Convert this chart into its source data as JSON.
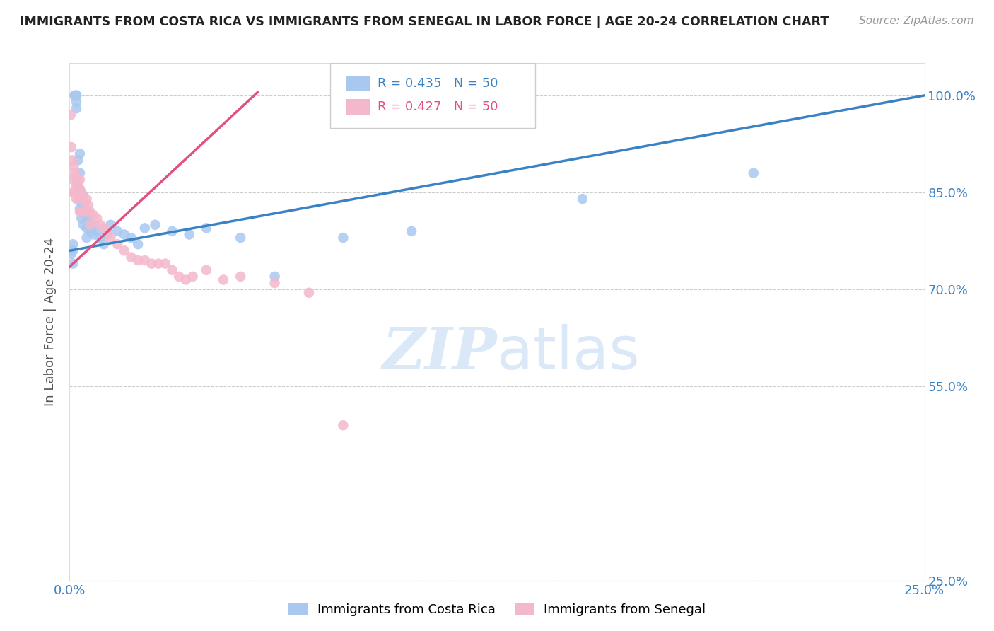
{
  "title": "IMMIGRANTS FROM COSTA RICA VS IMMIGRANTS FROM SENEGAL IN LABOR FORCE | AGE 20-24 CORRELATION CHART",
  "source": "Source: ZipAtlas.com",
  "ylabel": "In Labor Force | Age 20-24",
  "xlim": [
    0.0,
    0.25
  ],
  "ylim": [
    0.25,
    1.05
  ],
  "xticks": [
    0.0,
    0.05,
    0.1,
    0.15,
    0.2,
    0.25
  ],
  "xticklabels": [
    "0.0%",
    "",
    "",
    "",
    "",
    "25.0%"
  ],
  "yticks_right": [
    0.25,
    0.55,
    0.7,
    0.85,
    1.0
  ],
  "yticklabels_right": [
    "25.0%",
    "55.0%",
    "70.0%",
    "85.0%",
    "100.0%"
  ],
  "blue_color": "#a8c8f0",
  "pink_color": "#f4b8cc",
  "blue_line_color": "#3b82c4",
  "pink_line_color": "#e05080",
  "background_color": "#ffffff",
  "grid_color": "#cccccc",
  "watermark_color": "#dae8f8",
  "costa_rica_x": [
    0.0005,
    0.001,
    0.001,
    0.001,
    0.0015,
    0.0015,
    0.002,
    0.002,
    0.002,
    0.002,
    0.0025,
    0.0025,
    0.003,
    0.003,
    0.003,
    0.003,
    0.003,
    0.0035,
    0.0035,
    0.004,
    0.004,
    0.004,
    0.005,
    0.005,
    0.005,
    0.005,
    0.006,
    0.006,
    0.007,
    0.007,
    0.008,
    0.009,
    0.01,
    0.011,
    0.012,
    0.014,
    0.016,
    0.018,
    0.02,
    0.022,
    0.025,
    0.03,
    0.035,
    0.04,
    0.05,
    0.06,
    0.08,
    0.1,
    0.15,
    0.2
  ],
  "costa_rica_y": [
    0.755,
    0.77,
    0.76,
    0.74,
    1.0,
    1.0,
    1.0,
    1.0,
    0.99,
    0.98,
    0.9,
    0.85,
    0.91,
    0.88,
    0.855,
    0.84,
    0.825,
    0.82,
    0.81,
    0.845,
    0.83,
    0.8,
    0.82,
    0.81,
    0.795,
    0.78,
    0.81,
    0.79,
    0.8,
    0.785,
    0.79,
    0.78,
    0.77,
    0.785,
    0.8,
    0.79,
    0.785,
    0.78,
    0.77,
    0.795,
    0.8,
    0.79,
    0.785,
    0.795,
    0.78,
    0.72,
    0.78,
    0.79,
    0.84,
    0.88
  ],
  "senegal_x": [
    0.0003,
    0.0005,
    0.0008,
    0.001,
    0.001,
    0.0012,
    0.0015,
    0.0015,
    0.002,
    0.002,
    0.002,
    0.0022,
    0.0025,
    0.0025,
    0.003,
    0.003,
    0.003,
    0.0035,
    0.004,
    0.004,
    0.0045,
    0.005,
    0.005,
    0.0055,
    0.006,
    0.006,
    0.007,
    0.008,
    0.009,
    0.01,
    0.011,
    0.012,
    0.014,
    0.016,
    0.018,
    0.02,
    0.022,
    0.024,
    0.026,
    0.028,
    0.03,
    0.032,
    0.034,
    0.036,
    0.04,
    0.045,
    0.05,
    0.06,
    0.07,
    0.08
  ],
  "senegal_y": [
    0.97,
    0.92,
    0.9,
    0.87,
    0.85,
    0.89,
    0.88,
    0.85,
    0.875,
    0.86,
    0.84,
    0.87,
    0.86,
    0.84,
    0.87,
    0.85,
    0.82,
    0.85,
    0.84,
    0.82,
    0.835,
    0.84,
    0.82,
    0.83,
    0.82,
    0.8,
    0.815,
    0.81,
    0.8,
    0.795,
    0.79,
    0.78,
    0.77,
    0.76,
    0.75,
    0.745,
    0.745,
    0.74,
    0.74,
    0.74,
    0.73,
    0.72,
    0.715,
    0.72,
    0.73,
    0.715,
    0.72,
    0.71,
    0.695,
    0.49
  ],
  "blue_trendline_x": [
    0.0,
    0.25
  ],
  "blue_trendline_y": [
    0.76,
    1.0
  ],
  "pink_trendline_x": [
    0.0,
    0.055
  ],
  "pink_trendline_y": [
    0.735,
    1.005
  ],
  "legend_R_blue": "R = 0.435",
  "legend_N_blue": "N = 50",
  "legend_R_pink": "R = 0.427",
  "legend_N_pink": "N = 50",
  "legend_color_blue": "#3b82c4",
  "legend_color_pink": "#e05080",
  "bottom_legend_blue": "Immigrants from Costa Rica",
  "bottom_legend_pink": "Immigrants from Senegal"
}
